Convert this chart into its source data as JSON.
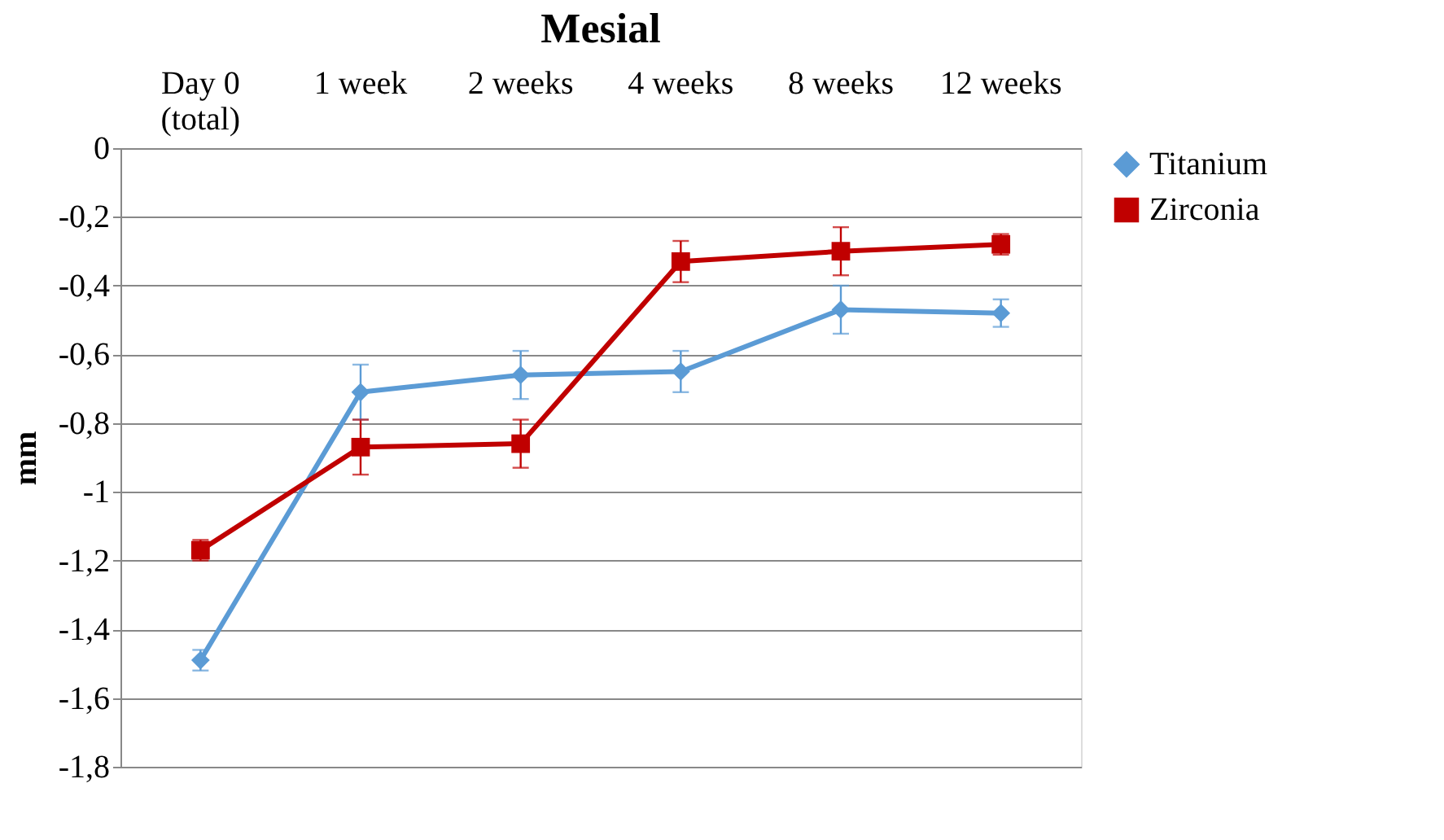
{
  "chart_data": {
    "type": "line",
    "title": "Mesial",
    "ylabel": "mm",
    "categories": [
      "Day 0\n(total)",
      "1 week",
      "2 weeks",
      "4 weeks",
      "8 weeks",
      "12 weeks"
    ],
    "series": [
      {
        "name": "Titanium",
        "color": "#5b9bd5",
        "marker": "diamond",
        "values": [
          -1.49,
          -0.71,
          -0.66,
          -0.65,
          -0.47,
          -0.48
        ],
        "errors": [
          0.03,
          0.08,
          0.07,
          0.06,
          0.07,
          0.04
        ]
      },
      {
        "name": "Zirconia",
        "color": "#c00000",
        "marker": "square",
        "values": [
          -1.17,
          -0.87,
          -0.86,
          -0.33,
          -0.3,
          -0.28
        ],
        "errors": [
          0.03,
          0.08,
          0.07,
          0.06,
          0.07,
          0.03
        ]
      }
    ],
    "ylim": [
      -1.8,
      0
    ],
    "yticks": [
      {
        "value": 0,
        "label": "0"
      },
      {
        "value": -0.2,
        "label": "-0,2"
      },
      {
        "value": -0.4,
        "label": "-0,4"
      },
      {
        "value": -0.6,
        "label": "-0,6"
      },
      {
        "value": -0.8,
        "label": "-0,8"
      },
      {
        "value": -1,
        "label": "-1"
      },
      {
        "value": -1.2,
        "label": "-1,2"
      },
      {
        "value": -1.4,
        "label": "-1,4"
      },
      {
        "value": -1.6,
        "label": "-1,6"
      },
      {
        "value": -1.8,
        "label": "-1,8"
      }
    ],
    "grid": "y",
    "legend": "right",
    "line_style": "solid"
  }
}
